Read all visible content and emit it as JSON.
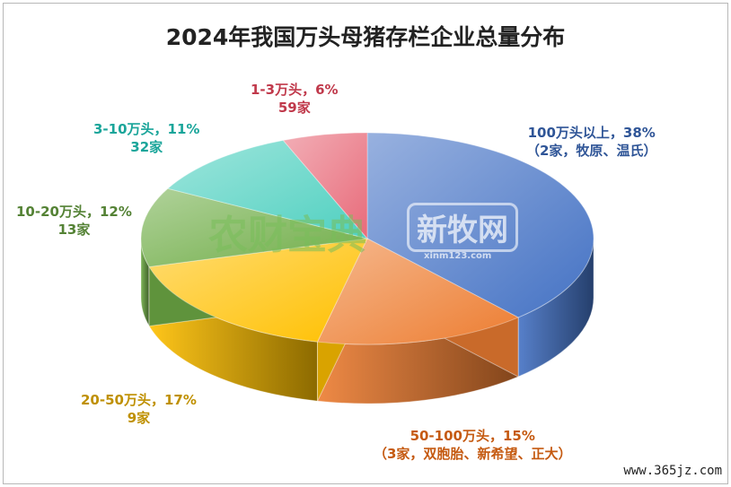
{
  "chart_data": {
    "type": "pie",
    "title": "2024年我国万头母猪存栏企业总量分布",
    "slices": [
      {
        "category": "100万头以上",
        "percent": 38,
        "line1": "100万头以上，38%",
        "line2": "（2家，牧原、温氏）",
        "color": "#4472c4"
      },
      {
        "category": "50-100万头",
        "percent": 15,
        "line1": "50-100万头，15%",
        "line2": "（3家，双胞胎、新希望、正大）",
        "color": "#ed7d31"
      },
      {
        "category": "20-50万头",
        "percent": 17,
        "line1": "20-50万头，17%",
        "line2": "9家",
        "color": "#ffc000"
      },
      {
        "category": "10-20万头",
        "percent": 12,
        "line1": "10-20万头，12%",
        "line2": "13家",
        "color": "#70ad47"
      },
      {
        "category": "3-10万头",
        "percent": 11,
        "line1": "3-10万头，11%",
        "line2": "32家",
        "color": "#4fd0c0"
      },
      {
        "category": "1-3万头",
        "percent": 6,
        "line1": "1-3万头，6%",
        "line2": "59家",
        "color": "#e86b7a"
      }
    ]
  },
  "label_colors": [
    "#2f5597",
    "#c55a11",
    "#bf9000",
    "#548235",
    "#1aa59a",
    "#c0394b"
  ],
  "watermarks": {
    "left": "农财宝典",
    "right": "新牧网",
    "right_sub": "xinm123.com",
    "site": "www.365jz.com"
  }
}
